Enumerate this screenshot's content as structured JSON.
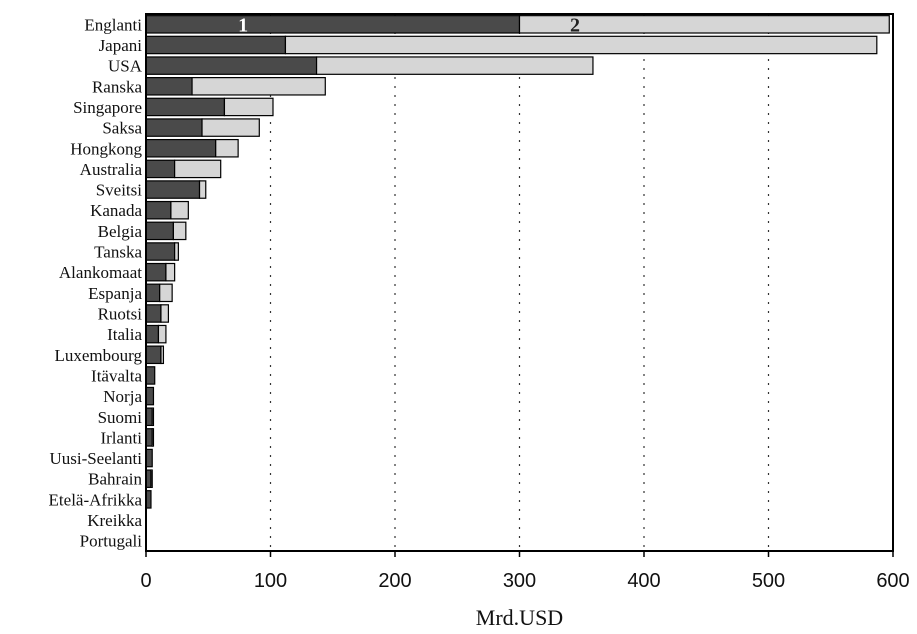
{
  "chart_data": {
    "type": "bar",
    "orientation": "horizontal",
    "stacked": true,
    "title": "",
    "xlabel": "Mrd.USD",
    "ylabel": "",
    "xlim": [
      0,
      600
    ],
    "xticks": [
      0,
      100,
      200,
      300,
      400,
      500,
      600
    ],
    "grid": "vertical dotted",
    "categories": [
      "Englanti",
      "Japani",
      "USA",
      "Ranska",
      "Singapore",
      "Saksa",
      "Hongkong",
      "Australia",
      "Sveitsi",
      "Kanada",
      "Belgia",
      "Tanska",
      "Alankomaat",
      "Espanja",
      "Ruotsi",
      "Italia",
      "Luxembourg",
      "Itävalta",
      "Norja",
      "Suomi",
      "Irlanti",
      "Uusi-Seelanti",
      "Bahrain",
      "Etelä-Afrikka",
      "Kreikka",
      "Portugali"
    ],
    "series": [
      {
        "name": "1",
        "color": "#4a4a4a",
        "values": [
          300,
          112,
          137,
          37,
          63,
          45,
          56,
          23,
          43,
          20,
          22,
          23,
          16,
          11,
          12,
          10,
          12,
          7,
          6,
          5,
          5,
          5,
          4,
          4,
          0,
          0
        ]
      },
      {
        "name": "2",
        "color": "#d6d6d6",
        "values": [
          297,
          475,
          222,
          107,
          39,
          46,
          18,
          37,
          5,
          14,
          10,
          3,
          7,
          10,
          6,
          6,
          2,
          0,
          0,
          1,
          1,
          0,
          1,
          0,
          0,
          0
        ]
      }
    ]
  }
}
